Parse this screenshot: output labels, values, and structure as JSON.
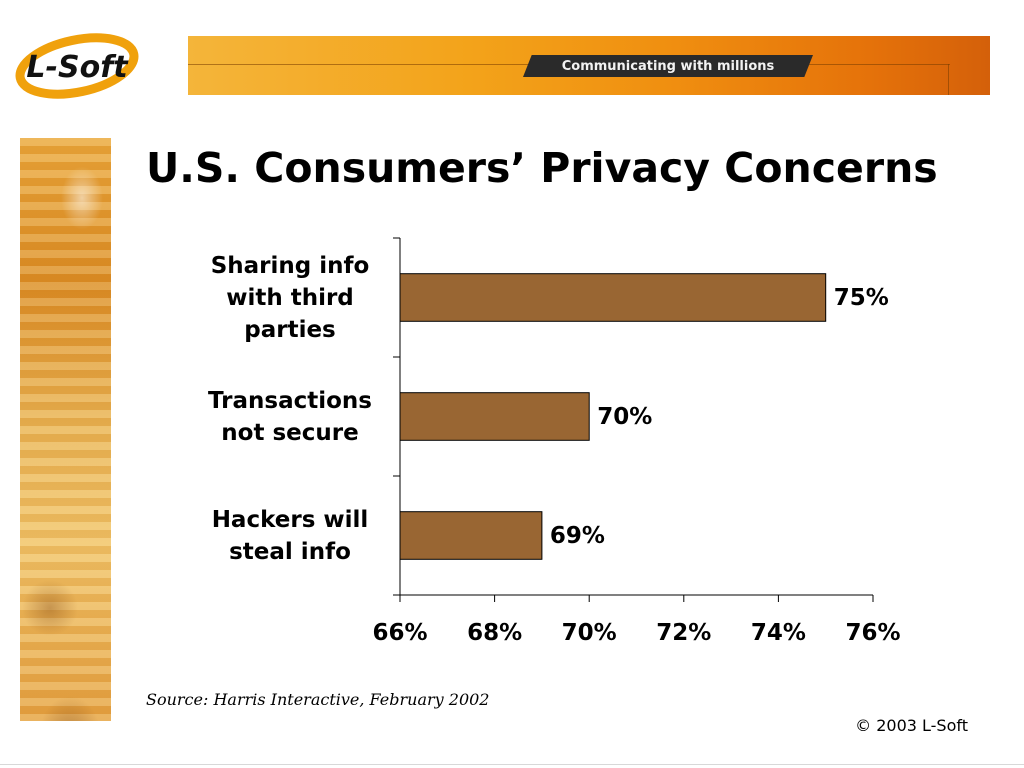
{
  "logo": {
    "text": "L-Soft"
  },
  "banner": {
    "tagline": "Communicating with millions"
  },
  "slide": {
    "title": "U.S. Consumers’ Privacy Concerns",
    "source": "Source: Harris Interactive, February 2002",
    "copyright": "© 2003 L-Soft"
  },
  "colors": {
    "bar": "#996633",
    "banner": "#f3a31a",
    "text": "#000000"
  },
  "chart_data": {
    "type": "bar",
    "orientation": "horizontal",
    "title": "",
    "xlabel": "",
    "ylabel": "",
    "categories": [
      "Sharing info\nwith third\nparties",
      "Transactions\nnot secure",
      "Hackers will\nsteal info"
    ],
    "values": [
      75,
      70,
      69
    ],
    "data_labels": [
      "75%",
      "70%",
      "69%"
    ],
    "xlim": [
      66,
      76
    ],
    "ticks": [
      66,
      68,
      70,
      72,
      74,
      76
    ],
    "tick_labels": [
      "66%",
      "68%",
      "70%",
      "72%",
      "74%",
      "76%"
    ],
    "grid": false,
    "legend": "none"
  }
}
